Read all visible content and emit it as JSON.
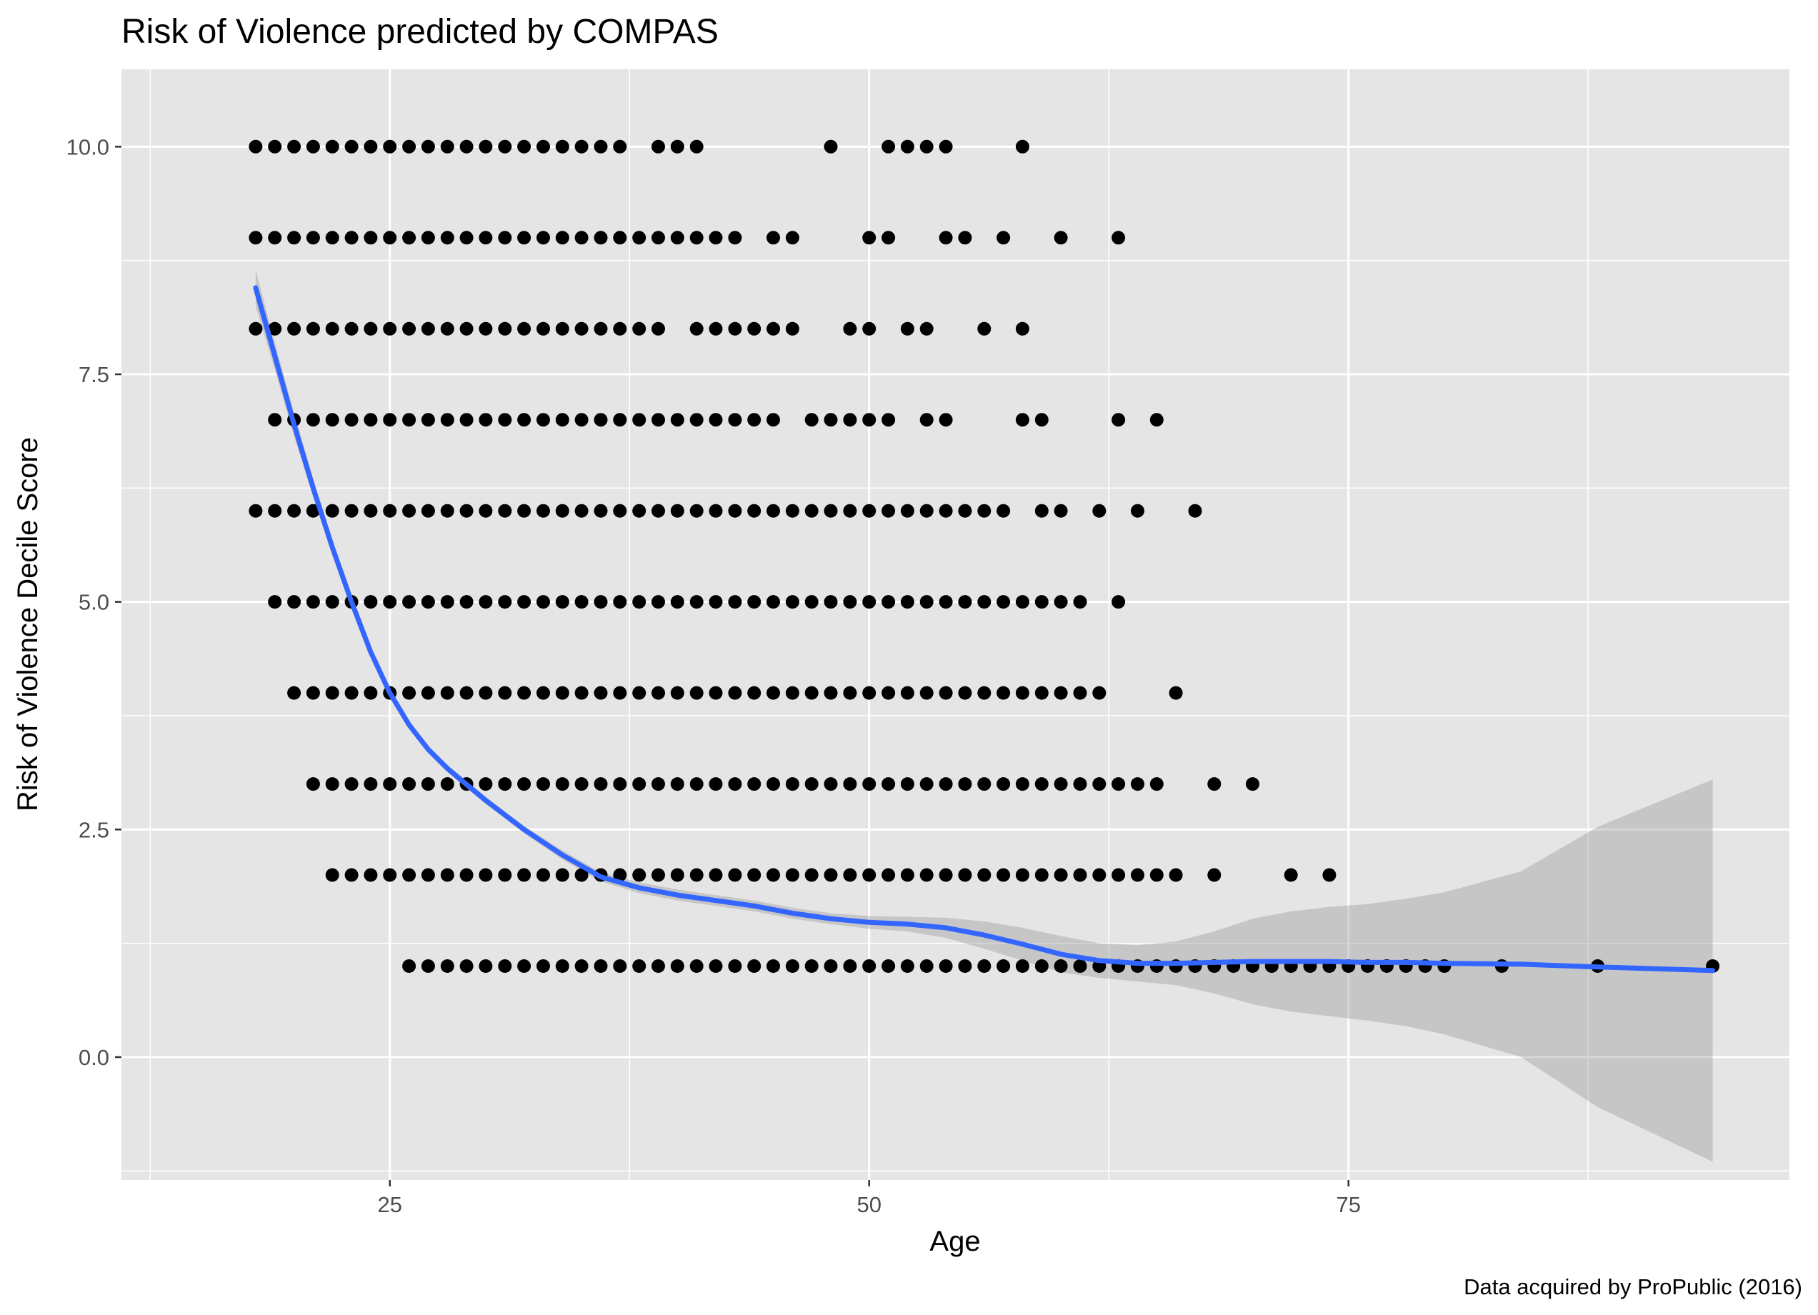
{
  "chart_data": {
    "type": "scatter",
    "title": "Risk of Violence predicted by COMPAS",
    "xlabel": "Age",
    "ylabel": "Risk of Violence Decile Score",
    "caption": "Data acquired by ProPublic (2016)",
    "xlim": [
      11,
      98
    ],
    "ylim": [
      -1.35,
      10.85
    ],
    "x_ticks": [
      {
        "value": 25,
        "label": "25"
      },
      {
        "value": 50,
        "label": "50"
      },
      {
        "value": 75,
        "label": "75"
      }
    ],
    "y_ticks": [
      {
        "value": 0,
        "label": "0.0"
      },
      {
        "value": 2.5,
        "label": "2.5"
      },
      {
        "value": 5,
        "label": "5.0"
      },
      {
        "value": 7.5,
        "label": "7.5"
      },
      {
        "value": 10,
        "label": "10.0"
      }
    ],
    "grid": true,
    "points_color": "#000000",
    "points": [
      {
        "y": 10,
        "ages": [
          18,
          19,
          20,
          21,
          22,
          23,
          24,
          25,
          26,
          27,
          28,
          29,
          30,
          31,
          32,
          33,
          34,
          35,
          36,
          37,
          39,
          40,
          41,
          48,
          51,
          52,
          53,
          54,
          58
        ]
      },
      {
        "y": 9,
        "ages": [
          18,
          19,
          20,
          21,
          22,
          23,
          24,
          25,
          26,
          27,
          28,
          29,
          30,
          31,
          32,
          33,
          34,
          35,
          36,
          37,
          38,
          39,
          40,
          41,
          42,
          43,
          45,
          46,
          50,
          51,
          54,
          55,
          57,
          60,
          63
        ]
      },
      {
        "y": 8,
        "ages": [
          18,
          19,
          20,
          21,
          22,
          23,
          24,
          25,
          26,
          27,
          28,
          29,
          30,
          31,
          32,
          33,
          34,
          35,
          36,
          37,
          38,
          39,
          41,
          42,
          43,
          44,
          45,
          46,
          49,
          50,
          52,
          53,
          56,
          58
        ]
      },
      {
        "y": 7,
        "ages": [
          19,
          20,
          21,
          22,
          23,
          24,
          25,
          26,
          27,
          28,
          29,
          30,
          31,
          32,
          33,
          34,
          35,
          36,
          37,
          38,
          39,
          40,
          41,
          42,
          43,
          44,
          45,
          47,
          48,
          49,
          50,
          51,
          53,
          54,
          58,
          59,
          63,
          65
        ]
      },
      {
        "y": 6,
        "ages": [
          18,
          19,
          20,
          21,
          22,
          23,
          24,
          25,
          26,
          27,
          28,
          29,
          30,
          31,
          32,
          33,
          34,
          35,
          36,
          37,
          38,
          39,
          40,
          41,
          42,
          43,
          44,
          45,
          46,
          47,
          48,
          49,
          50,
          51,
          52,
          53,
          54,
          55,
          56,
          57,
          59,
          60,
          62,
          64,
          67
        ]
      },
      {
        "y": 5,
        "ages": [
          19,
          20,
          21,
          22,
          23,
          24,
          25,
          26,
          27,
          28,
          29,
          30,
          31,
          32,
          33,
          34,
          35,
          36,
          37,
          38,
          39,
          40,
          41,
          42,
          43,
          44,
          45,
          46,
          47,
          48,
          49,
          50,
          51,
          52,
          53,
          54,
          55,
          56,
          57,
          58,
          59,
          60,
          61,
          63
        ]
      },
      {
        "y": 4,
        "ages": [
          20,
          21,
          22,
          23,
          24,
          25,
          26,
          27,
          28,
          29,
          30,
          31,
          32,
          33,
          34,
          35,
          36,
          37,
          38,
          39,
          40,
          41,
          42,
          43,
          44,
          45,
          46,
          47,
          48,
          49,
          50,
          51,
          52,
          53,
          54,
          55,
          56,
          57,
          58,
          59,
          60,
          61,
          62,
          66
        ]
      },
      {
        "y": 3,
        "ages": [
          21,
          22,
          23,
          24,
          25,
          26,
          27,
          28,
          29,
          30,
          31,
          32,
          33,
          34,
          35,
          36,
          37,
          38,
          39,
          40,
          41,
          42,
          43,
          44,
          45,
          46,
          47,
          48,
          49,
          50,
          51,
          52,
          53,
          54,
          55,
          56,
          57,
          58,
          59,
          60,
          61,
          62,
          63,
          64,
          65,
          68,
          70
        ]
      },
      {
        "y": 2,
        "ages": [
          22,
          23,
          24,
          25,
          26,
          27,
          28,
          29,
          30,
          31,
          32,
          33,
          34,
          35,
          36,
          37,
          38,
          39,
          40,
          41,
          42,
          43,
          44,
          45,
          46,
          47,
          48,
          49,
          50,
          51,
          52,
          53,
          54,
          55,
          56,
          57,
          58,
          59,
          60,
          61,
          62,
          63,
          64,
          65,
          66,
          68,
          72,
          74
        ]
      },
      {
        "y": 1,
        "ages": [
          26,
          27,
          28,
          29,
          30,
          31,
          32,
          33,
          34,
          35,
          36,
          37,
          38,
          39,
          40,
          41,
          42,
          43,
          44,
          45,
          46,
          47,
          48,
          49,
          50,
          51,
          52,
          53,
          54,
          55,
          56,
          57,
          58,
          59,
          60,
          61,
          62,
          63,
          64,
          65,
          66,
          67,
          68,
          69,
          70,
          71,
          72,
          73,
          74,
          75,
          76,
          77,
          78,
          79,
          80,
          83,
          88,
          94
        ]
      }
    ],
    "smooth": {
      "color": "#3366ff",
      "x": [
        18,
        19,
        20,
        21,
        22,
        23,
        24,
        25,
        26,
        27,
        28,
        30,
        32,
        34,
        36,
        38,
        40,
        42,
        44,
        46,
        48,
        50,
        52,
        54,
        56,
        58,
        60,
        62,
        64,
        66,
        68,
        70,
        72,
        74,
        76,
        78,
        80,
        84,
        88,
        94
      ],
      "y": [
        8.45,
        7.7,
        6.95,
        6.25,
        5.6,
        5.0,
        4.45,
        4.0,
        3.65,
        3.38,
        3.17,
        2.82,
        2.5,
        2.22,
        1.98,
        1.86,
        1.78,
        1.72,
        1.66,
        1.58,
        1.52,
        1.48,
        1.46,
        1.42,
        1.34,
        1.24,
        1.13,
        1.06,
        1.03,
        1.03,
        1.04,
        1.05,
        1.05,
        1.05,
        1.04,
        1.04,
        1.03,
        1.02,
        0.99,
        0.95
      ],
      "ci_low": [
        8.25,
        7.55,
        6.82,
        6.15,
        5.52,
        4.93,
        4.4,
        3.95,
        3.61,
        3.34,
        3.13,
        2.78,
        2.46,
        2.17,
        1.93,
        1.8,
        1.72,
        1.66,
        1.6,
        1.52,
        1.46,
        1.41,
        1.38,
        1.31,
        1.19,
        1.06,
        0.93,
        0.87,
        0.83,
        0.79,
        0.7,
        0.58,
        0.5,
        0.45,
        0.4,
        0.34,
        0.25,
        0.0,
        -0.55,
        -1.15
      ],
      "ci_high": [
        8.65,
        7.85,
        7.08,
        6.35,
        5.68,
        5.07,
        4.5,
        4.05,
        3.69,
        3.42,
        3.21,
        2.86,
        2.54,
        2.27,
        2.03,
        1.92,
        1.84,
        1.78,
        1.72,
        1.64,
        1.58,
        1.55,
        1.54,
        1.53,
        1.49,
        1.42,
        1.33,
        1.25,
        1.23,
        1.27,
        1.38,
        1.52,
        1.6,
        1.65,
        1.68,
        1.74,
        1.81,
        2.04,
        2.53,
        3.05
      ]
    }
  }
}
